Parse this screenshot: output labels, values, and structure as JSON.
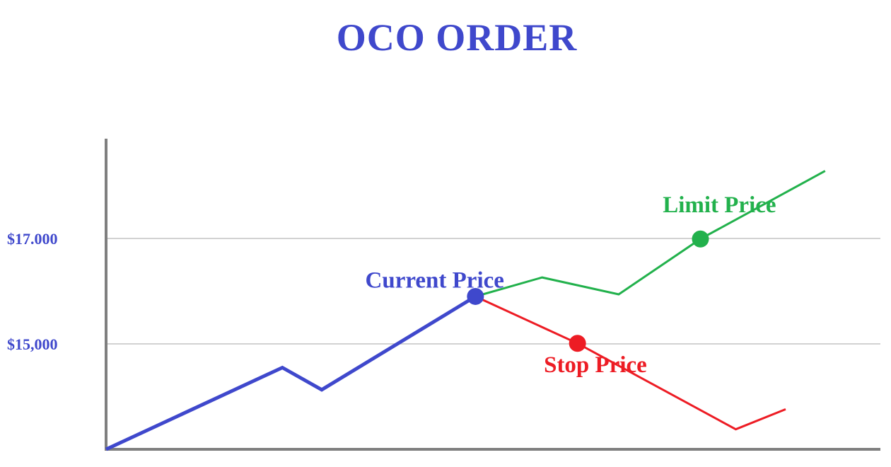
{
  "chart_data": {
    "type": "line",
    "title": "OCO ORDER",
    "xlabel": "",
    "ylabel": "",
    "ylim": [
      13000,
      18000
    ],
    "y_ticks": [
      {
        "value": 15000,
        "label": "$15,000"
      },
      {
        "value": 17000,
        "label": "$17.000"
      }
    ],
    "grid": true,
    "series": [
      {
        "color": "#3f48cc",
        "points": [
          [
            0,
            13000
          ],
          [
            3.04,
            14550
          ],
          [
            3.72,
            14130
          ],
          [
            6.37,
            15900
          ]
        ]
      },
      {
        "color": "#22b14c",
        "points": [
          [
            6.37,
            15900
          ],
          [
            7.52,
            16260
          ],
          [
            8.84,
            15940
          ],
          [
            10.25,
            16990
          ],
          [
            12.4,
            18280
          ]
        ]
      },
      {
        "color": "#ed1c24",
        "points": [
          [
            6.37,
            15900
          ],
          [
            8.13,
            15010
          ],
          [
            10.86,
            13380
          ],
          [
            11.72,
            13760
          ]
        ]
      }
    ],
    "markers": [
      {
        "name": "current",
        "x": 6.37,
        "y": 15900,
        "color": "#3f48cc"
      },
      {
        "name": "limit",
        "x": 10.25,
        "y": 16990,
        "color": "#22b14c"
      },
      {
        "name": "stop",
        "x": 8.13,
        "y": 15010,
        "color": "#ed1c24"
      }
    ],
    "annotations": [
      {
        "name": "current-price-label",
        "text": "Current Price",
        "x": 4.47,
        "y": 16070,
        "color": "#3f48cc"
      },
      {
        "name": "limit-price-label",
        "text": "Limit Price",
        "x": 9.6,
        "y": 17500,
        "color": "#22b14c"
      },
      {
        "name": "stop-price-label",
        "text": "Stop Price",
        "x": 7.55,
        "y": 14460,
        "color": "#ed1c24"
      }
    ]
  },
  "colors": {
    "title": "#3f48cc",
    "axis": "#7f7f7f",
    "grid": "#c3c3c3",
    "tick_label": "#3f48cc"
  }
}
